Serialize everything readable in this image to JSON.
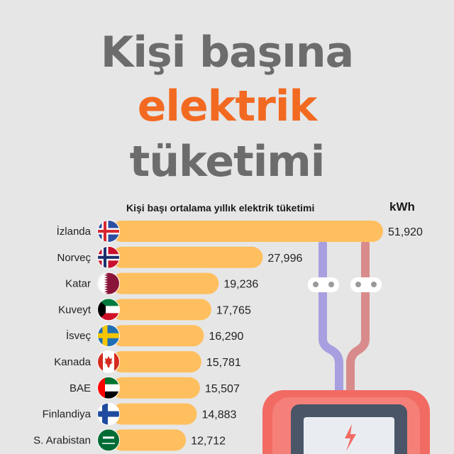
{
  "title": {
    "line1": "Kişi başına",
    "line2": "elektrik",
    "line3": "tüketimi"
  },
  "colors": {
    "bar": "#ffbf5e",
    "title_gray": "#6c6c6c",
    "accent": "#f26a21",
    "wire_blue": "#a79fe0",
    "wire_red": "#d98b8b",
    "meter": "#f26b63"
  },
  "chart_data": {
    "type": "bar",
    "orientation": "horizontal",
    "subtitle": "Kişi başı ortalama yıllık elektrik tüketimi",
    "unit": "kWh",
    "categories": [
      "İzlanda",
      "Norveç",
      "Katar",
      "Kuveyt",
      "İsveç",
      "Kanada",
      "BAE",
      "Finlandiya",
      "S. Arabistan"
    ],
    "values": [
      51920,
      27996,
      19236,
      17765,
      16290,
      15781,
      15507,
      14883,
      12712
    ],
    "value_labels": [
      "51,920",
      "27,996",
      "19,236",
      "17,765",
      "16,290",
      "15,781",
      "15,507",
      "14,883",
      "12,712"
    ],
    "flags": [
      "iceland-flag-icon",
      "norway-flag-icon",
      "qatar-flag-icon",
      "kuwait-flag-icon",
      "sweden-flag-icon",
      "canada-flag-icon",
      "uae-flag-icon",
      "finland-flag-icon",
      "saudi-arabia-flag-icon"
    ],
    "xlim": [
      0,
      51920
    ]
  }
}
